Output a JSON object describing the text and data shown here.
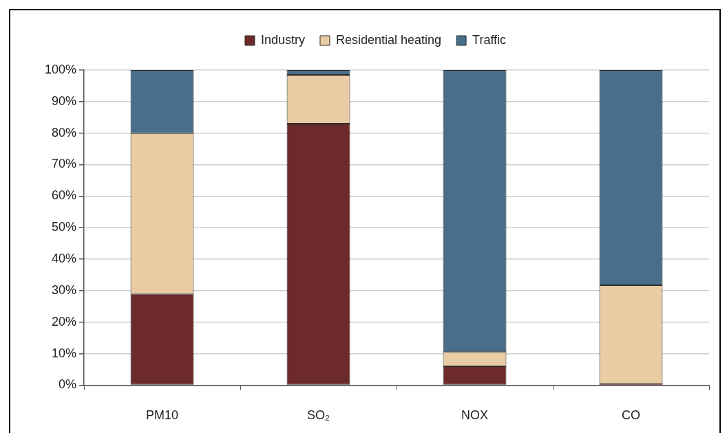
{
  "chart_data": {
    "type": "bar",
    "stacked": true,
    "categories": [
      "PM10",
      "SO₂",
      "NOX",
      "CO"
    ],
    "series": [
      {
        "name": "Industry",
        "color": "#6d2a2a",
        "values": [
          29,
          83,
          6,
          0.3
        ]
      },
      {
        "name": "Residential heating",
        "color": "#e9cba4",
        "values": [
          51,
          15.5,
          4.5,
          31.4
        ]
      },
      {
        "name": "Traffic",
        "color": "#486e89",
        "values": [
          20,
          1.5,
          89.5,
          68.3
        ]
      }
    ],
    "ylim": [
      0,
      100
    ],
    "yticks": [
      {
        "value": 0,
        "label": "0%"
      },
      {
        "value": 10,
        "label": "10%"
      },
      {
        "value": 20,
        "label": "20%"
      },
      {
        "value": 30,
        "label": "30%"
      },
      {
        "value": 40,
        "label": "40%"
      },
      {
        "value": 50,
        "label": "50%"
      },
      {
        "value": 60,
        "label": "60%"
      },
      {
        "value": 70,
        "label": "70%"
      },
      {
        "value": 80,
        "label": "80%"
      },
      {
        "value": 90,
        "label": "90%"
      },
      {
        "value": 100,
        "label": "100%"
      }
    ],
    "grid": "y",
    "legend": "top"
  }
}
